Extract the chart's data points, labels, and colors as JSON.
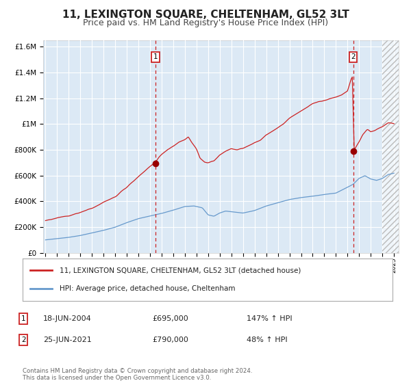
{
  "title": "11, LEXINGTON SQUARE, CHELTENHAM, GL52 3LT",
  "subtitle": "Price paid vs. HM Land Registry's House Price Index (HPI)",
  "title_fontsize": 11,
  "subtitle_fontsize": 9,
  "plot_bg_color": "#dce9f5",
  "fig_bg_color": "#ffffff",
  "grid_color": "#ffffff",
  "red_line_color": "#cc2222",
  "blue_line_color": "#6699cc",
  "sale1_date": 2004.46,
  "sale1_price": 695000,
  "sale2_date": 2021.48,
  "sale2_price": 790000,
  "ylim": [
    0,
    1650000
  ],
  "xlim_start": 1994.8,
  "xlim_end": 2025.4,
  "legend_line1": "11, LEXINGTON SQUARE, CHELTENHAM, GL52 3LT (detached house)",
  "legend_line2": "HPI: Average price, detached house, Cheltenham",
  "annotation1_date": "18-JUN-2004",
  "annotation1_price": "£695,000",
  "annotation1_hpi": "147% ↑ HPI",
  "annotation2_date": "25-JUN-2021",
  "annotation2_price": "£790,000",
  "annotation2_hpi": "48% ↑ HPI",
  "footer": "Contains HM Land Registry data © Crown copyright and database right 2024.\nThis data is licensed under the Open Government Licence v3.0."
}
